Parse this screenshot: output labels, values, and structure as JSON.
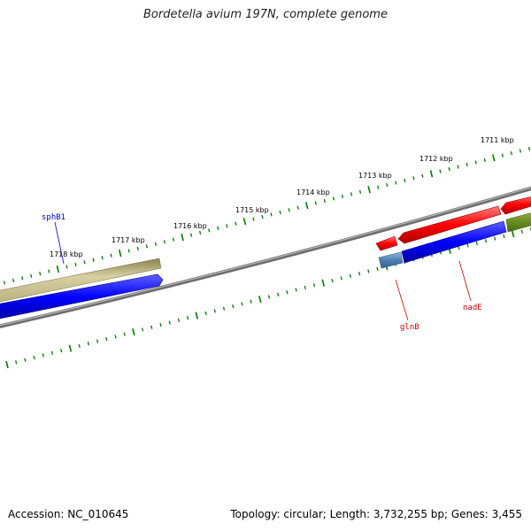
{
  "title": "Bordetella avium 197N, complete genome",
  "footer": {
    "accession": "Accession: NC_010645",
    "summary": "Topology: circular; Length: 3,732,255 bp; Genes: 3,455"
  },
  "ruler_labels": [
    "1711 kbp",
    "1712 kbp",
    "1713 kbp",
    "1714 kbp",
    "1715 kbp",
    "1716 kbp",
    "1717 kbp",
    "1718 kbp"
  ],
  "genes": [
    {
      "name": "sphB1",
      "color": "#0000cc"
    },
    {
      "name": "glnB",
      "color": "#cc0000"
    },
    {
      "name": "nadE",
      "color": "#cc0000"
    }
  ],
  "colors": {
    "tick": "#007700",
    "backbone": "#808080",
    "forward_cds": "#ff0000",
    "reverse_cds": "#0000ff",
    "rna_khaki": "#c8c080",
    "olive": "#6b8e23",
    "steel": "#4f7fb0"
  }
}
